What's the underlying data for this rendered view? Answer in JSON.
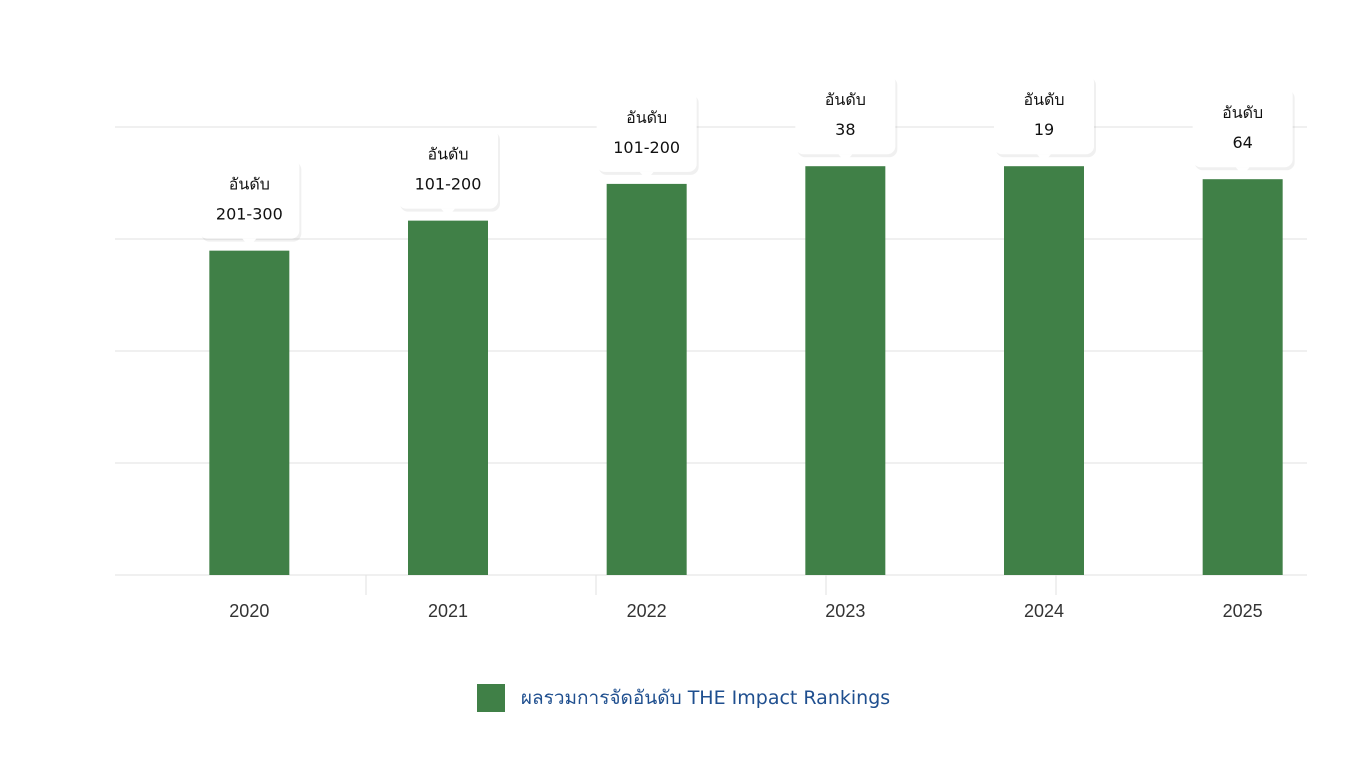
{
  "chart_data": {
    "type": "bar",
    "categories": [
      "2020",
      "2021",
      "2022",
      "2023",
      "2024",
      "2025"
    ],
    "series": [
      {
        "name": "ผลรวมการจัดอันดับ THE Impact Rankings",
        "values": [
          1448,
          1582,
          1746,
          1825,
          1825,
          1767
        ],
        "data_labels": [
          [
            "อันดับ",
            "201-300"
          ],
          [
            "อันดับ",
            "101-200"
          ],
          [
            "อันดับ",
            "101-200"
          ],
          [
            "อันดับ",
            "38"
          ],
          [
            "อันดับ",
            "19"
          ],
          [
            "อันดับ",
            "64"
          ]
        ]
      }
    ],
    "ylim": [
      0,
      2000
    ],
    "ygrid_step": 500,
    "grid": true,
    "legend_position": "bottom-center",
    "bar_color": "#408047",
    "grid_color": "#ebebeb",
    "label_color": "#1f4f8f"
  }
}
